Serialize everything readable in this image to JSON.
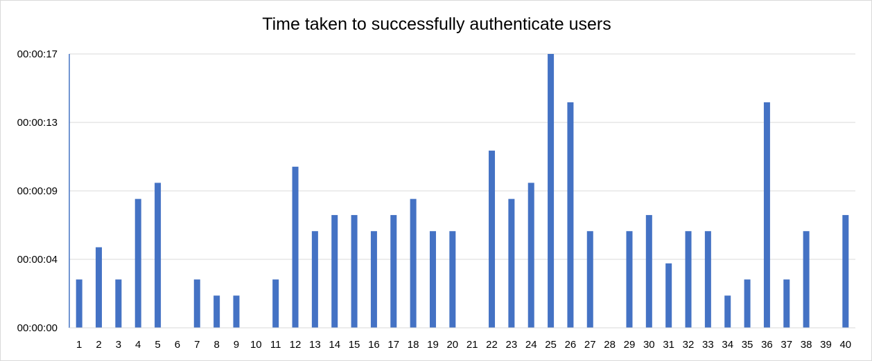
{
  "chart_data": {
    "type": "bar",
    "title": "Time taken to successfully authenticate users",
    "xlabel": "",
    "ylabel": "",
    "categories": [
      "1",
      "2",
      "3",
      "4",
      "5",
      "6",
      "7",
      "8",
      "9",
      "10",
      "11",
      "12",
      "13",
      "14",
      "15",
      "16",
      "17",
      "18",
      "19",
      "20",
      "21",
      "22",
      "23",
      "24",
      "25",
      "26",
      "27",
      "28",
      "29",
      "30",
      "31",
      "32",
      "33",
      "34",
      "35",
      "36",
      "37",
      "38",
      "39",
      "40"
    ],
    "series": [
      {
        "values": [
          3,
          5,
          3,
          8,
          9,
          0,
          3,
          2,
          2,
          0,
          3,
          10,
          6,
          7,
          7,
          6,
          7,
          8,
          6,
          6,
          0,
          11,
          8,
          9,
          17,
          14,
          6,
          0,
          6,
          7,
          4,
          6,
          6,
          2,
          3,
          14,
          3,
          6,
          0,
          7
        ]
      }
    ],
    "y_unit": "seconds",
    "ylim": [
      0,
      17
    ],
    "y_ticks": [
      "00:00:00",
      "00:00:04",
      "00:00:09",
      "00:00:13",
      "00:00:17"
    ],
    "grid": true,
    "legend": "none",
    "bar_color": "#4472c4",
    "grid_color": "#d9d9d9"
  }
}
